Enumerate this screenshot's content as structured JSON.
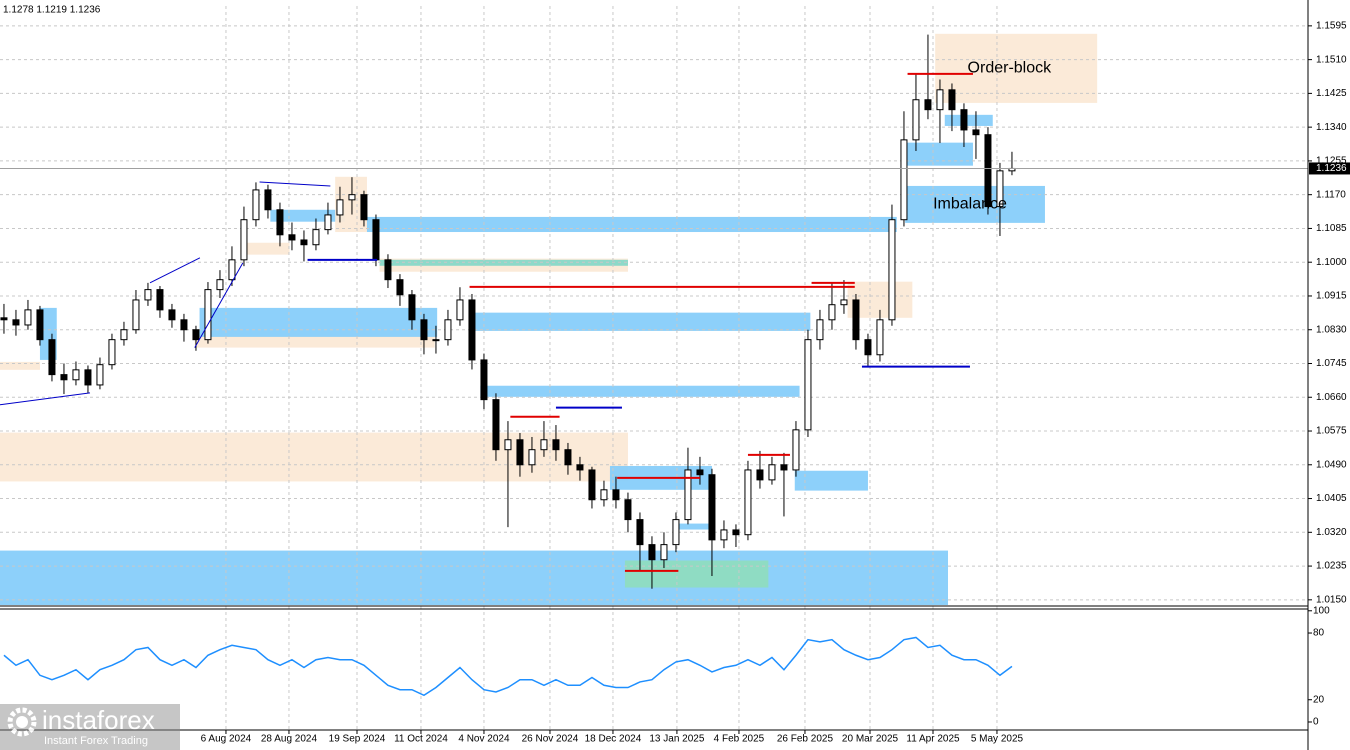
{
  "header": "1.1278 1.1219 1.1236",
  "branding": {
    "name": "instaforex",
    "tagline": "Instant Forex Trading"
  },
  "chart_data": {
    "type": "candlestick",
    "xlim": [
      -0.33,
      108.67
    ],
    "xticks": [
      {
        "value": 18.5,
        "label": "6 Aug 2024"
      },
      {
        "value": 23.75,
        "label": "28 Aug 2024"
      },
      {
        "value": 29.42,
        "label": "19 Sep 2024"
      },
      {
        "value": 34.75,
        "label": "11 Oct 2024"
      },
      {
        "value": 40,
        "label": "4 Nov 2024"
      },
      {
        "value": 45.5,
        "label": "26 Nov 2024"
      },
      {
        "value": 50.75,
        "label": "18 Dec 2024"
      },
      {
        "value": 56.08,
        "label": "13 Jan 2025"
      },
      {
        "value": 61.25,
        "label": "4 Feb 2025"
      },
      {
        "value": 66.75,
        "label": "26 Feb 2025"
      },
      {
        "value": 72.17,
        "label": "20 Mar 2025"
      },
      {
        "value": 77.42,
        "label": "11 Apr 2025"
      },
      {
        "value": 82.75,
        "label": "5 May 2025"
      }
    ],
    "ylim": [
      1.0137,
      1.1645
    ],
    "yticks": [
      1.1595,
      {
        "value": 1.151,
        "label": "1.1510"
      },
      1.1425,
      {
        "value": 1.134,
        "label": "1.1340"
      },
      1.1255,
      {
        "value": 1.117,
        "label": "1.1170"
      },
      1.1085,
      {
        "value": 1.1,
        "label": "1.1000"
      },
      1.0915,
      {
        "value": 1.083,
        "label": "1.0830"
      },
      1.0745,
      {
        "value": 1.066,
        "label": "1.0660"
      },
      1.0575,
      {
        "value": 1.049,
        "label": "1.0490"
      },
      1.0405,
      {
        "value": 1.032,
        "label": "1.0320"
      },
      1.0235,
      {
        "value": 1.015,
        "label": "1.0150"
      }
    ],
    "grid": true,
    "bull_color": "#ffffff",
    "bear_color": "#000000",
    "ohlc": [
      [
        1.086,
        1.0895,
        1.082,
        1.0855
      ],
      [
        1.0855,
        1.088,
        1.0815,
        1.0842
      ],
      [
        1.0842,
        1.0905,
        1.083,
        1.088
      ],
      [
        1.088,
        1.089,
        1.079,
        1.0805
      ],
      [
        1.0805,
        1.082,
        1.07,
        1.0717
      ],
      [
        1.0717,
        1.0745,
        1.0668,
        1.0704
      ],
      [
        1.0704,
        1.075,
        1.069,
        1.0729
      ],
      [
        1.0729,
        1.074,
        1.067,
        1.0691
      ],
      [
        1.0691,
        1.076,
        1.068,
        1.0742
      ],
      [
        1.0742,
        1.082,
        1.073,
        1.0805
      ],
      [
        1.0805,
        1.085,
        1.079,
        1.083
      ],
      [
        1.083,
        1.093,
        1.082,
        1.0905
      ],
      [
        1.0905,
        1.0948,
        1.089,
        1.0931
      ],
      [
        1.0931,
        1.094,
        1.086,
        1.088
      ],
      [
        1.088,
        1.0895,
        1.0835,
        1.0855
      ],
      [
        1.0855,
        1.087,
        1.08,
        1.083
      ],
      [
        1.083,
        1.084,
        1.0777,
        1.0805
      ],
      [
        1.0805,
        1.095,
        1.0795,
        1.0931
      ],
      [
        1.0931,
        1.098,
        1.091,
        1.0956
      ],
      [
        1.0956,
        1.104,
        1.094,
        1.1006
      ],
      [
        1.1006,
        1.114,
        1.099,
        1.1107
      ],
      [
        1.1107,
        1.1201,
        1.109,
        1.1182
      ],
      [
        1.1182,
        1.1195,
        1.111,
        1.1132
      ],
      [
        1.1132,
        1.115,
        1.104,
        1.1069
      ],
      [
        1.1069,
        1.11,
        1.103,
        1.1056
      ],
      [
        1.1056,
        1.108,
        1.1002,
        1.1044
      ],
      [
        1.1044,
        1.111,
        1.103,
        1.1082
      ],
      [
        1.1082,
        1.115,
        1.107,
        1.1119
      ],
      [
        1.1119,
        1.119,
        1.11,
        1.1157
      ],
      [
        1.1157,
        1.1214,
        1.112,
        1.117
      ],
      [
        1.117,
        1.118,
        1.109,
        1.1107
      ],
      [
        1.1107,
        1.112,
        1.099,
        1.1006
      ],
      [
        1.1006,
        1.102,
        1.0935,
        1.0956
      ],
      [
        1.0956,
        1.097,
        1.089,
        1.0918
      ],
      [
        1.0918,
        1.093,
        1.083,
        1.0855
      ],
      [
        1.0855,
        1.087,
        1.0768,
        1.0805
      ],
      [
        1.0805,
        1.084,
        1.077,
        1.0805
      ],
      [
        1.0805,
        1.088,
        1.079,
        1.0855
      ],
      [
        1.0855,
        1.0937,
        1.084,
        1.0905
      ],
      [
        1.0905,
        1.092,
        1.073,
        1.0754
      ],
      [
        1.0754,
        1.077,
        1.063,
        1.0654
      ],
      [
        1.0654,
        1.067,
        1.05,
        1.0528
      ],
      [
        1.0528,
        1.06,
        1.0333,
        1.0553
      ],
      [
        1.0553,
        1.057,
        1.046,
        1.049
      ],
      [
        1.049,
        1.056,
        1.047,
        1.0528
      ],
      [
        1.0528,
        1.06,
        1.051,
        1.0553
      ],
      [
        1.0553,
        1.059,
        1.05,
        1.0528
      ],
      [
        1.0528,
        1.0545,
        1.0465,
        1.049
      ],
      [
        1.049,
        1.051,
        1.045,
        1.0477
      ],
      [
        1.0477,
        1.0485,
        1.038,
        1.0402
      ],
      [
        1.0402,
        1.045,
        1.0385,
        1.0427
      ],
      [
        1.0427,
        1.046,
        1.038,
        1.0402
      ],
      [
        1.0402,
        1.042,
        1.032,
        1.0352
      ],
      [
        1.0352,
        1.037,
        1.0225,
        1.0289
      ],
      [
        1.0289,
        1.031,
        1.0178,
        1.0251
      ],
      [
        1.0251,
        1.032,
        1.023,
        1.0289
      ],
      [
        1.0289,
        1.037,
        1.027,
        1.0352
      ],
      [
        1.0352,
        1.0533,
        1.034,
        1.0477
      ],
      [
        1.0477,
        1.051,
        1.044,
        1.0465
      ],
      [
        1.0465,
        1.048,
        1.021,
        1.0301
      ],
      [
        1.0301,
        1.035,
        1.028,
        1.0326
      ],
      [
        1.0326,
        1.034,
        1.0283,
        1.0314
      ],
      [
        1.0314,
        1.05,
        1.03,
        1.0477
      ],
      [
        1.0477,
        1.0525,
        1.043,
        1.0452
      ],
      [
        1.0452,
        1.051,
        1.044,
        1.049
      ],
      [
        1.049,
        1.052,
        1.036,
        1.0477
      ],
      [
        1.0477,
        1.06,
        1.046,
        1.0578
      ],
      [
        1.0578,
        1.083,
        1.056,
        1.0805
      ],
      [
        1.0805,
        1.088,
        1.078,
        1.0855
      ],
      [
        1.0855,
        1.095,
        1.083,
        1.0893
      ],
      [
        1.0893,
        1.0955,
        1.087,
        1.0905
      ],
      [
        1.0905,
        1.092,
        1.078,
        1.0805
      ],
      [
        1.0805,
        1.082,
        1.0735,
        1.0767
      ],
      [
        1.0767,
        1.088,
        1.075,
        1.0855
      ],
      [
        1.0855,
        1.1145,
        1.084,
        1.1107
      ],
      [
        1.1107,
        1.138,
        1.109,
        1.1308
      ],
      [
        1.1308,
        1.1473,
        1.128,
        1.1409
      ],
      [
        1.1409,
        1.1573,
        1.136,
        1.1384
      ],
      [
        1.1384,
        1.146,
        1.13,
        1.1434
      ],
      [
        1.1434,
        1.145,
        1.133,
        1.1384
      ],
      [
        1.1384,
        1.14,
        1.129,
        1.1333
      ],
      [
        1.1333,
        1.138,
        1.126,
        1.1321
      ],
      [
        1.1321,
        1.134,
        1.112,
        1.114
      ],
      [
        1.114,
        1.125,
        1.1066,
        1.123
      ],
      [
        1.123,
        1.1278,
        1.1219,
        1.1236
      ]
    ],
    "zones": [
      {
        "x": [
          -0.33,
          78.67
        ],
        "price": [
          1.0137,
          1.0274
        ],
        "color": "#87cefa"
      },
      {
        "x": [
          -0.33,
          52
        ],
        "price": [
          1.0448,
          1.0571
        ],
        "color": "#fbe9d6"
      },
      {
        "x": [
          -0.33,
          3
        ],
        "price": [
          1.0729,
          1.0749
        ],
        "color": "#fbe9d6"
      },
      {
        "x": [
          3,
          4.4
        ],
        "price": [
          1.0754,
          1.0885
        ],
        "color": "#87cefa"
      },
      {
        "x": [
          15.9,
          35.9
        ],
        "price": [
          1.0785,
          1.0815
        ],
        "color": "#fbe9d6"
      },
      {
        "x": [
          16.3,
          36.1
        ],
        "price": [
          1.0812,
          1.0885
        ],
        "color": "#87cefa"
      },
      {
        "x": [
          19.7,
          23.8
        ],
        "price": [
          1.1019,
          1.1049
        ],
        "color": "#fbe9d6"
      },
      {
        "x": [
          22.2,
          28.4
        ],
        "price": [
          1.1102,
          1.1132
        ],
        "color": "#87cefa"
      },
      {
        "x": [
          27.6,
          30.25
        ],
        "price": [
          1.1076,
          1.1215
        ],
        "color": "#fbe9d6"
      },
      {
        "x": [
          30.25,
          74.4
        ],
        "price": [
          1.1076,
          1.1114
        ],
        "color": "#87cefa"
      },
      {
        "x": [
          31.3,
          52
        ],
        "price": [
          1.0976,
          1.1009
        ],
        "color": "#fbe9d6"
      },
      {
        "x": [
          31.3,
          52
        ],
        "price": [
          1.0991,
          1.1006
        ],
        "color": "#87d8c8"
      },
      {
        "x": [
          38.8,
          67.2
        ],
        "price": [
          1.0827,
          1.0873
        ],
        "color": "#87cefa"
      },
      {
        "x": [
          39.7,
          66.3
        ],
        "price": [
          1.0661,
          1.0689
        ],
        "color": "#87cefa"
      },
      {
        "x": [
          50.5,
          59
        ],
        "price": [
          1.0427,
          1.0487
        ],
        "color": "#87cefa"
      },
      {
        "x": [
          51.75,
          63.7
        ],
        "price": [
          1.0181,
          1.0249
        ],
        "color": "#8fdcc0"
      },
      {
        "x": [
          55.9,
          59
        ],
        "price": [
          1.0327,
          1.0342
        ],
        "color": "#87cefa"
      },
      {
        "x": [
          65.9,
          72
        ],
        "price": [
          1.0425,
          1.0475
        ],
        "color": "#87cefa"
      },
      {
        "x": [
          70.3,
          75.7
        ],
        "price": [
          1.086,
          1.0951
        ],
        "color": "#fbe9d6"
      },
      {
        "x": [
          75.1,
          80.75
        ],
        "price": [
          1.1243,
          1.1301
        ],
        "color": "#87cefa"
      },
      {
        "x": [
          75.1,
          86.75
        ],
        "price": [
          1.1099,
          1.1192
        ],
        "color": "#87cefa",
        "label": "Imbalance"
      },
      {
        "x": [
          77.6,
          91.1
        ],
        "price": [
          1.1401,
          1.1575
        ],
        "color": "#fbe9d6",
        "label": "Order-block"
      },
      {
        "x": [
          78.4,
          82.4
        ],
        "price": [
          1.1343,
          1.1371
        ],
        "color": "#87cefa"
      }
    ],
    "levels": [
      {
        "x": [
          38.8,
          70.9
        ],
        "price": 1.0938,
        "color": "#e00000"
      },
      {
        "x": [
          75.3,
          80.75
        ],
        "price": 1.1474,
        "color": "#e00000"
      },
      {
        "x": [
          42.2,
          46.3
        ],
        "price": 1.0611,
        "color": "#e00000"
      },
      {
        "x": [
          51.1,
          58
        ],
        "price": 1.0457,
        "color": "#e00000"
      },
      {
        "x": [
          51.75,
          56.2
        ],
        "price": 1.0223,
        "color": "#e00000"
      },
      {
        "x": [
          62,
          65.5
        ],
        "price": 1.0515,
        "color": "#e00000"
      },
      {
        "x": [
          67.3,
          70.9
        ],
        "price": 1.0948,
        "color": "#e00000"
      },
      {
        "x": [
          71.5,
          80.5
        ],
        "price": 1.0737,
        "color": "#0000c8"
      },
      {
        "x": [
          25.3,
          31.1
        ],
        "price": 1.1006,
        "color": "#0000c8"
      },
      {
        "x": [
          46,
          51.5
        ],
        "price": 1.0634,
        "color": "#0000c8"
      }
    ],
    "trendlines": [
      {
        "x": [
          -0.33,
          7.17
        ],
        "price": [
          1.0641,
          1.0671
        ],
        "color": "#0000c8"
      },
      {
        "x": [
          12.17,
          16.33
        ],
        "price": [
          1.0948,
          1.1011
        ],
        "color": "#0000c8"
      },
      {
        "x": [
          15.9,
          19.9
        ],
        "price": [
          1.0785,
          1.0998
        ],
        "color": "#0000c8"
      },
      {
        "x": [
          21.3,
          27.2
        ],
        "price": [
          1.1202,
          1.1192
        ],
        "color": "#0000c8"
      }
    ],
    "indicator": {
      "type": "line",
      "color": "#1e8fff",
      "ylim": [
        -20.7,
        101.6
      ],
      "yticks": [
        100,
        80,
        20,
        0
      ],
      "values": [
        60,
        51,
        56,
        42,
        38,
        42,
        47,
        38,
        47,
        51,
        56,
        65,
        67,
        56,
        51,
        56,
        49,
        60,
        65,
        69,
        67,
        65,
        56,
        51,
        56,
        49,
        56,
        58,
        56,
        56,
        51,
        42,
        33,
        29,
        29,
        24,
        31,
        40,
        49,
        38,
        29,
        27,
        31,
        38,
        38,
        33,
        38,
        33,
        33,
        40,
        33,
        31,
        31,
        36,
        38,
        47,
        54,
        56,
        51,
        45,
        49,
        51,
        56,
        51,
        58,
        47,
        60,
        74,
        72,
        74,
        65,
        60,
        56,
        58,
        65,
        74,
        76,
        67,
        69,
        60,
        56,
        56,
        51,
        42,
        50
      ]
    }
  }
}
